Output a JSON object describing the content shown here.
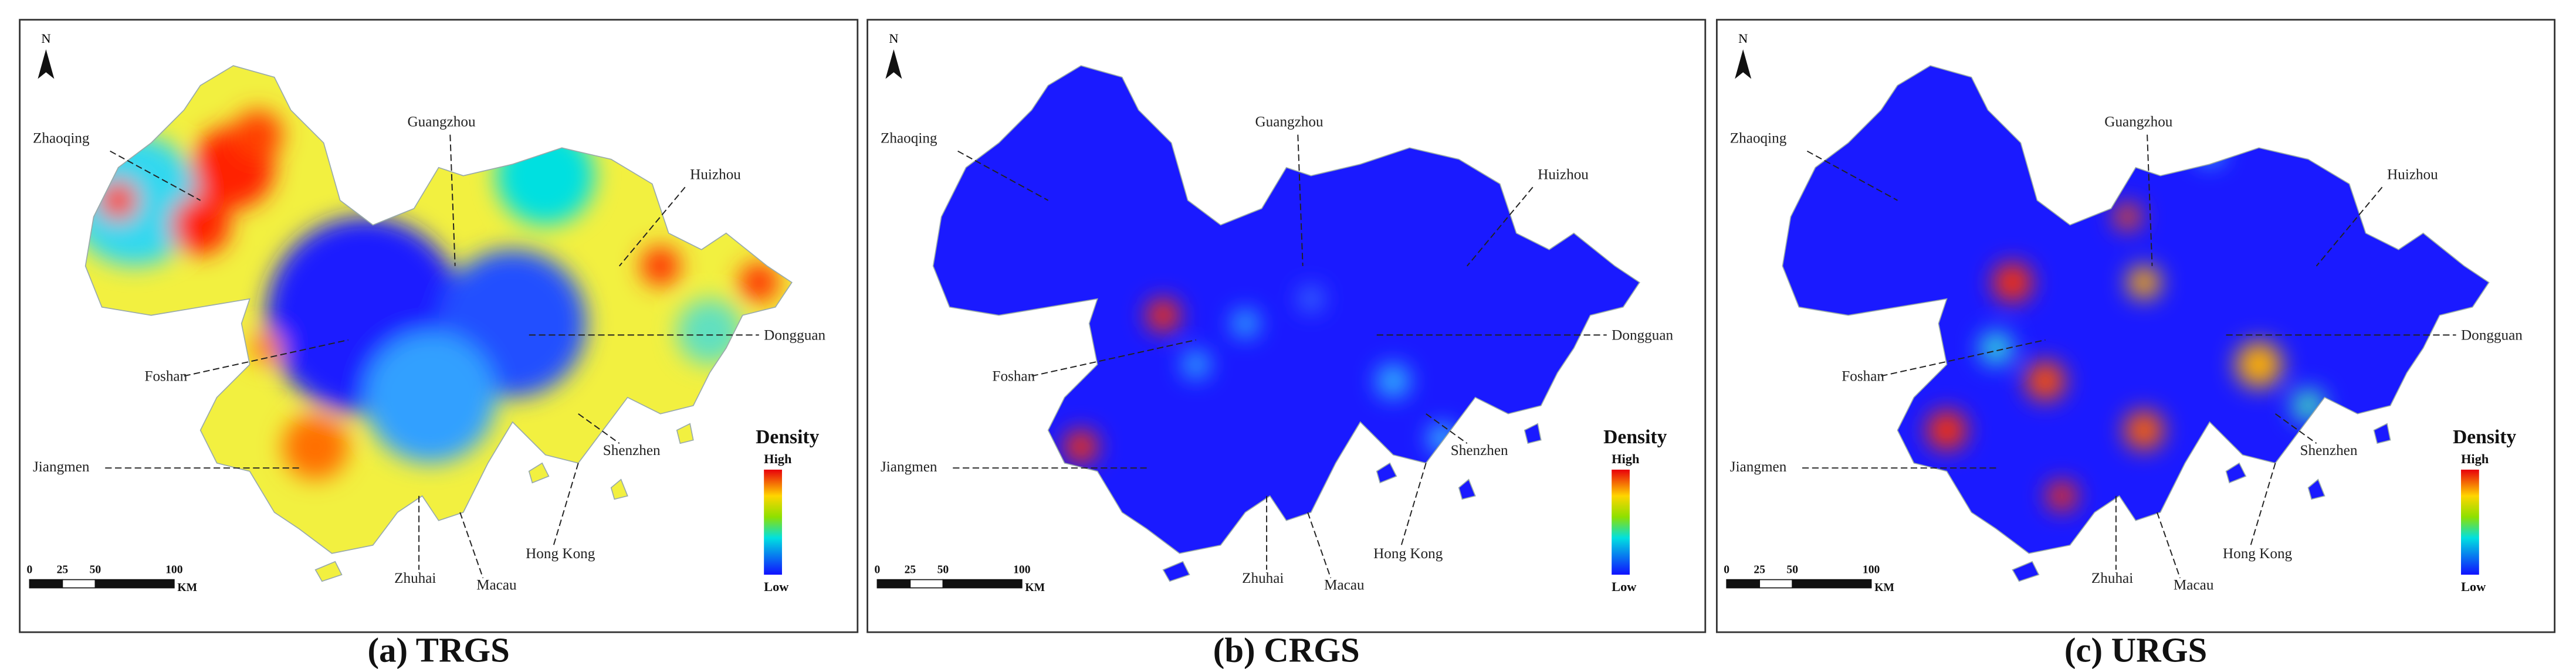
{
  "panels": [
    {
      "caption": "(a) TRGS",
      "north": "N",
      "cities": [
        "Zhaoqing",
        "Guangzhou",
        "Huizhou",
        "Foshan",
        "Dongguan",
        "Jiangmen",
        "Shenzhen",
        "Zhuhai",
        "Macau",
        "Hong Kong"
      ],
      "legend": {
        "title": "Density",
        "high": "High",
        "low": "Low"
      },
      "scale": {
        "ticks": [
          0,
          25,
          50,
          100
        ],
        "unit": "KM"
      }
    },
    {
      "caption": "(b) CRGS",
      "north": "N",
      "cities": [
        "Zhaoqing",
        "Guangzhou",
        "Huizhou",
        "Foshan",
        "Dongguan",
        "Jiangmen",
        "Shenzhen",
        "Zhuhai",
        "Macau",
        "Hong Kong"
      ],
      "legend": {
        "title": "Density",
        "high": "High",
        "low": "Low"
      },
      "scale": {
        "ticks": [
          0,
          25,
          50,
          100
        ],
        "unit": "KM"
      }
    },
    {
      "caption": "(c) URGS",
      "north": "N",
      "cities": [
        "Zhaoqing",
        "Guangzhou",
        "Huizhou",
        "Foshan",
        "Dongguan",
        "Jiangmen",
        "Shenzhen",
        "Zhuhai",
        "Macau",
        "Hong Kong"
      ],
      "legend": {
        "title": "Density",
        "high": "High",
        "low": "Low"
      },
      "scale": {
        "ticks": [
          0,
          25,
          50,
          100
        ],
        "unit": "KM"
      }
    }
  ]
}
